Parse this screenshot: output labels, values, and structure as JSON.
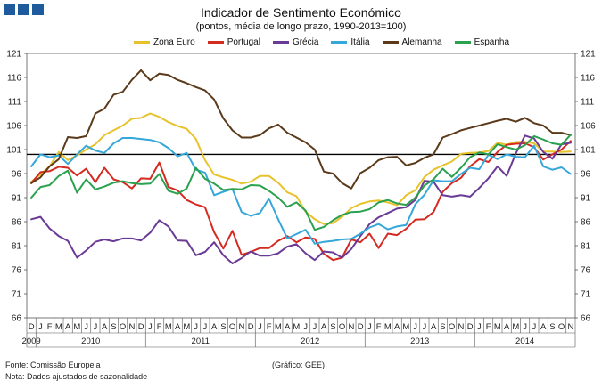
{
  "chart_data": {
    "type": "line",
    "title": "Indicador de Sentimento Económico",
    "subtitle": "(pontos, média de longo prazo, 1990-2013=100)",
    "ylim": [
      66,
      121
    ],
    "yticks": [
      66,
      71,
      76,
      81,
      86,
      91,
      96,
      101,
      106,
      111,
      116,
      121
    ],
    "reference_line": 100,
    "month_labels": [
      "D",
      "J",
      "F",
      "M",
      "A",
      "M",
      "J",
      "J",
      "A",
      "S",
      "O",
      "N",
      "D",
      "J",
      "F",
      "M",
      "A",
      "M",
      "J",
      "J",
      "A",
      "S",
      "O",
      "N",
      "D",
      "J",
      "F",
      "M",
      "A",
      "M",
      "J",
      "J",
      "A",
      "S",
      "O",
      "N",
      "D",
      "J",
      "F",
      "M",
      "A",
      "M",
      "J",
      "J",
      "A",
      "S",
      "O",
      "N",
      "D",
      "J",
      "F",
      "M",
      "A",
      "M",
      "J",
      "J",
      "A",
      "S",
      "O",
      "N"
    ],
    "year_labels": [
      {
        "label": "2009",
        "start": 0,
        "end": 0
      },
      {
        "label": "2010",
        "start": 1,
        "end": 12
      },
      {
        "label": "2011",
        "start": 13,
        "end": 24
      },
      {
        "label": "2012",
        "start": 25,
        "end": 36
      },
      {
        "label": "2013",
        "start": 37,
        "end": 48
      },
      {
        "label": "2014",
        "start": 49,
        "end": 59
      }
    ],
    "series": [
      {
        "name": "Zona Euro",
        "color": "#e8c22a",
        "values": [
          94.3,
          95.8,
          97.5,
          100.5,
          98.8,
          99.8,
          101.0,
          102.1,
          104.0,
          105.0,
          106.0,
          107.4,
          107.6,
          108.5,
          107.8,
          106.7,
          105.9,
          105.3,
          103.2,
          98.8,
          95.8,
          95.2,
          94.7,
          93.9,
          94.3,
          95.5,
          95.5,
          94.1,
          92.1,
          91.3,
          88.1,
          86.5,
          85.5,
          85.7,
          87.0,
          88.8,
          89.7,
          90.2,
          90.4,
          90.0,
          89.4,
          91.5,
          92.5,
          95.3,
          96.8,
          97.7,
          98.5,
          100.1,
          100.3,
          100.4,
          100.7,
          102.4,
          102.0,
          102.6,
          102.6,
          102.3,
          100.6,
          100.6,
          100.5,
          100.6
        ]
      },
      {
        "name": "Portugal",
        "color": "#d42a20",
        "values": [
          94.0,
          96.3,
          96.5,
          97.4,
          97.2,
          95.6,
          97.0,
          94.2,
          97.2,
          94.8,
          94.2,
          92.9,
          95.0,
          94.9,
          98.3,
          93.2,
          92.5,
          90.5,
          89.6,
          89.0,
          83.8,
          80.4,
          84.1,
          79.1,
          79.7,
          80.5,
          80.5,
          82.0,
          83.0,
          81.7,
          82.7,
          82.4,
          79.3,
          78.0,
          78.5,
          82.3,
          81.7,
          83.5,
          80.5,
          83.5,
          83.2,
          84.5,
          86.4,
          86.5,
          88.0,
          92.2,
          94.0,
          95.1,
          97.5,
          99.0,
          98.4,
          100.5,
          102.0,
          102.2,
          102.3,
          101.5,
          98.9,
          100.0,
          101.0,
          102.8
        ]
      },
      {
        "name": "Grécia",
        "color": "#6a3a96",
        "values": [
          86.5,
          87.0,
          84.6,
          83.0,
          82.0,
          78.5,
          80.0,
          81.8,
          82.3,
          81.9,
          82.5,
          82.5,
          82.1,
          83.7,
          86.3,
          85.0,
          82.1,
          82.0,
          79.0,
          79.7,
          81.7,
          79.0,
          77.3,
          78.4,
          79.8,
          78.9,
          78.9,
          79.4,
          80.8,
          81.3,
          79.4,
          78.0,
          79.8,
          79.6,
          78.5,
          80.3,
          83.0,
          85.5,
          86.9,
          87.8,
          88.7,
          89.0,
          90.5,
          94.5,
          94.3,
          91.5,
          91.2,
          91.5,
          91.2,
          93.0,
          95.0,
          97.5,
          95.5,
          100.2,
          103.9,
          103.3,
          100.5,
          99.1,
          102.1,
          102.4
        ]
      },
      {
        "name": "Itália",
        "color": "#35a7d8",
        "values": [
          97.5,
          100.0,
          99.4,
          99.8,
          98.0,
          100.0,
          101.8,
          100.8,
          100.3,
          102.3,
          103.4,
          103.4,
          103.2,
          103.0,
          102.5,
          101.3,
          99.6,
          100.3,
          96.8,
          96.2,
          91.5,
          92.2,
          92.8,
          88.0,
          87.2,
          87.8,
          90.8,
          86.5,
          82.5,
          83.4,
          84.3,
          81.4,
          81.8,
          82.0,
          82.3,
          82.4,
          83.5,
          84.8,
          85.5,
          84.4,
          85.0,
          85.3,
          89.6,
          91.6,
          94.6,
          94.4,
          94.4,
          95.9,
          97.2,
          96.9,
          99.9,
          99.0,
          100.0,
          99.5,
          99.4,
          101.8,
          97.5,
          96.8,
          97.3,
          95.9
        ]
      },
      {
        "name": "Alemanha",
        "color": "#5a3a1a",
        "values": [
          94.0,
          95.2,
          97.5,
          99.0,
          103.6,
          103.4,
          103.8,
          108.5,
          109.5,
          112.4,
          113.0,
          115.5,
          117.5,
          115.4,
          116.8,
          116.5,
          115.5,
          114.8,
          114.0,
          113.3,
          111.4,
          107.5,
          105.0,
          103.5,
          103.5,
          104.0,
          105.4,
          106.2,
          104.5,
          103.5,
          102.5,
          101.0,
          96.4,
          96.0,
          94.0,
          92.9,
          96.1,
          97.2,
          98.8,
          99.4,
          99.5,
          97.7,
          98.2,
          99.3,
          100.0,
          103.5,
          104.2,
          105.0,
          105.5,
          106.0,
          106.5,
          107.0,
          107.4,
          106.8,
          107.6,
          106.5,
          106.0,
          104.5,
          104.5,
          104.0
        ]
      },
      {
        "name": "Espanha",
        "color": "#2aa14f",
        "values": [
          91.0,
          93.2,
          93.6,
          95.5,
          96.6,
          92.0,
          94.8,
          92.7,
          93.3,
          94.1,
          94.4,
          94.0,
          93.8,
          93.9,
          95.9,
          92.4,
          91.8,
          92.9,
          97.2,
          94.9,
          93.9,
          92.6,
          92.8,
          92.7,
          93.6,
          93.5,
          92.4,
          91.0,
          89.1,
          90.0,
          88.3,
          84.3,
          84.9,
          86.3,
          87.4,
          88.0,
          88.1,
          88.6,
          90.0,
          90.5,
          89.8,
          89.5,
          91.0,
          93.5,
          94.8,
          97.0,
          95.3,
          97.2,
          99.4,
          100.4,
          100.0,
          102.1,
          101.5,
          101.0,
          101.9,
          103.8,
          103.1,
          102.3,
          102.0,
          104.1
        ]
      }
    ]
  },
  "header": {
    "title": "Indicador de Sentimento Económico",
    "subtitle": "(pontos, média de longo prazo, 1990-2013=100)"
  },
  "footer": {
    "source": "Fonte: Comissão Europeia",
    "note": "Nota: Dados ajustados de sazonalidade",
    "graph_credit": "(Gráfico: GEE)"
  }
}
